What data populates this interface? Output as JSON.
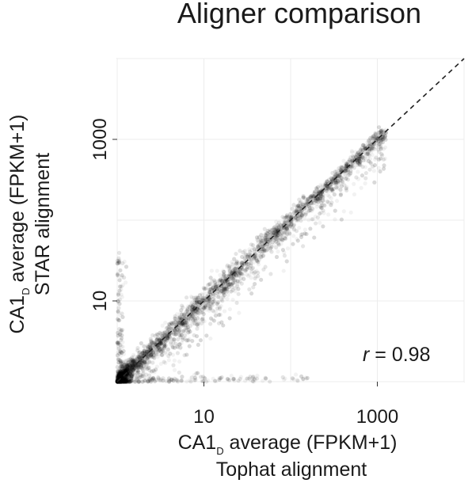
{
  "chart_data": {
    "type": "scatter",
    "title": "Aligner comparison",
    "xlabel": {
      "main": "CA1",
      "subscript": "D",
      "rest": " average (FPKM+1)",
      "line2": "Tophat alignment"
    },
    "ylabel": {
      "main": "CA1",
      "subscript": "D",
      "rest": " average (FPKM+1)",
      "line2": "STAR alignment"
    },
    "x_scale": "log10",
    "y_scale": "log10",
    "xlim": [
      1,
      10000
    ],
    "ylim": [
      1,
      10000
    ],
    "x_ticks": [
      10,
      1000
    ],
    "x_tick_labels": [
      "10",
      "1000"
    ],
    "y_ticks": [
      10,
      1000
    ],
    "y_tick_labels": [
      "10",
      "1000"
    ],
    "grid": true,
    "reference_line": {
      "style": "dashed",
      "slope": 1,
      "intercept": 0
    },
    "annotation": {
      "symbol": "r",
      "text": " = 0.98",
      "position": "bottom-right"
    },
    "point_color": "#000000",
    "point_opacity": 0.05,
    "approx_points": 6000,
    "points_description": "Dense cloud of genes tightly along the diagonal y = x from ~1 to ~2000 FPKM+1, with scatter spreading mainly below the diagonal and low-expression points clustered near 1."
  }
}
